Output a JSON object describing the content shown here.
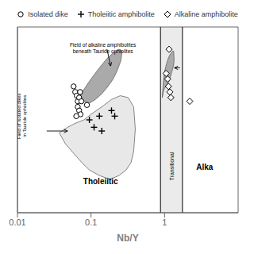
{
  "chart_data": {
    "type": "scatter",
    "log": "x",
    "xlabel": "Nb/Y",
    "xlim": [
      0.01,
      10
    ],
    "xticks": [
      0.01,
      0.1,
      1
    ],
    "ylim": [
      0.0,
      1.0
    ],
    "tick_labels": "x",
    "grid": false,
    "series": [
      {
        "name": "Isolated dike",
        "marker": "circle",
        "color": "#000000",
        "x": [
          0.058,
          0.061,
          0.064,
          0.066,
          0.069,
          0.071,
          0.074,
          0.066,
          0.069,
          0.072,
          0.063,
          0.088
        ],
        "y": [
          0.68,
          0.65,
          0.63,
          0.6,
          0.62,
          0.65,
          0.6,
          0.57,
          0.55,
          0.53,
          0.52,
          0.58
        ]
      },
      {
        "name": "Tholeiitic amphibolite",
        "marker": "plus",
        "color": "#000000",
        "x": [
          0.095,
          0.11,
          0.13,
          0.14,
          0.19,
          0.21
        ],
        "y": [
          0.5,
          0.46,
          0.52,
          0.44,
          0.55,
          0.52
        ]
      },
      {
        "name": "Alkaline amphibolite",
        "marker": "diamond",
        "color": "#000000",
        "x": [
          1.05,
          1.1,
          1.13,
          1.18,
          1.22,
          1.15,
          2.2
        ],
        "y": [
          0.75,
          0.72,
          0.68,
          0.65,
          0.62,
          0.88,
          0.6
        ]
      }
    ],
    "fields": [
      {
        "color": "#e8e8e8",
        "x": [
          0.037,
          0.045,
          0.058,
          0.075,
          0.095,
          0.13,
          0.18,
          0.24,
          0.3,
          0.35,
          0.38,
          0.4,
          0.38,
          0.32,
          0.25,
          0.19,
          0.14,
          0.1,
          0.08,
          0.06,
          0.048,
          0.037
        ],
        "y": [
          0.43,
          0.37,
          0.32,
          0.27,
          0.23,
          0.2,
          0.18,
          0.2,
          0.23,
          0.27,
          0.33,
          0.45,
          0.57,
          0.62,
          0.63,
          0.61,
          0.57,
          0.53,
          0.5,
          0.48,
          0.46,
          0.43
        ]
      },
      {
        "color": "#aaaaaa",
        "x": [
          0.068,
          0.08,
          0.095,
          0.115,
          0.14,
          0.17,
          0.2,
          0.23,
          0.255,
          0.265,
          0.24,
          0.2,
          0.165,
          0.13,
          0.1,
          0.082,
          0.068
        ],
        "y": [
          0.62,
          0.6,
          0.59,
          0.61,
          0.64,
          0.68,
          0.72,
          0.77,
          0.82,
          0.87,
          0.88,
          0.86,
          0.83,
          0.78,
          0.72,
          0.67,
          0.62
        ]
      },
      {
        "color": "#aaaaaa",
        "x": [
          0.93,
          0.96,
          1.0,
          1.04,
          1.08,
          1.12,
          1.16,
          1.2,
          1.24,
          1.28,
          1.32,
          1.35,
          1.33,
          1.28,
          1.23,
          1.18,
          1.12,
          1.06,
          1.0,
          0.96,
          0.93
        ],
        "y": [
          0.62,
          0.65,
          0.67,
          0.68,
          0.69,
          0.7,
          0.71,
          0.73,
          0.75,
          0.77,
          0.79,
          0.82,
          0.87,
          0.87,
          0.86,
          0.85,
          0.83,
          0.8,
          0.76,
          0.7,
          0.62
        ]
      }
    ],
    "bands": [
      {
        "xmin": 0.88,
        "xmax": 1.75,
        "color": "#d8d8d8"
      }
    ],
    "annotations": [
      "Tholeiitic",
      "Transitional",
      "Alka",
      "Field of alkaline amphibolites\nbeneath Tauride ophiolites",
      "Field of isolated dikes\nin Tauride ophiolites"
    ]
  }
}
